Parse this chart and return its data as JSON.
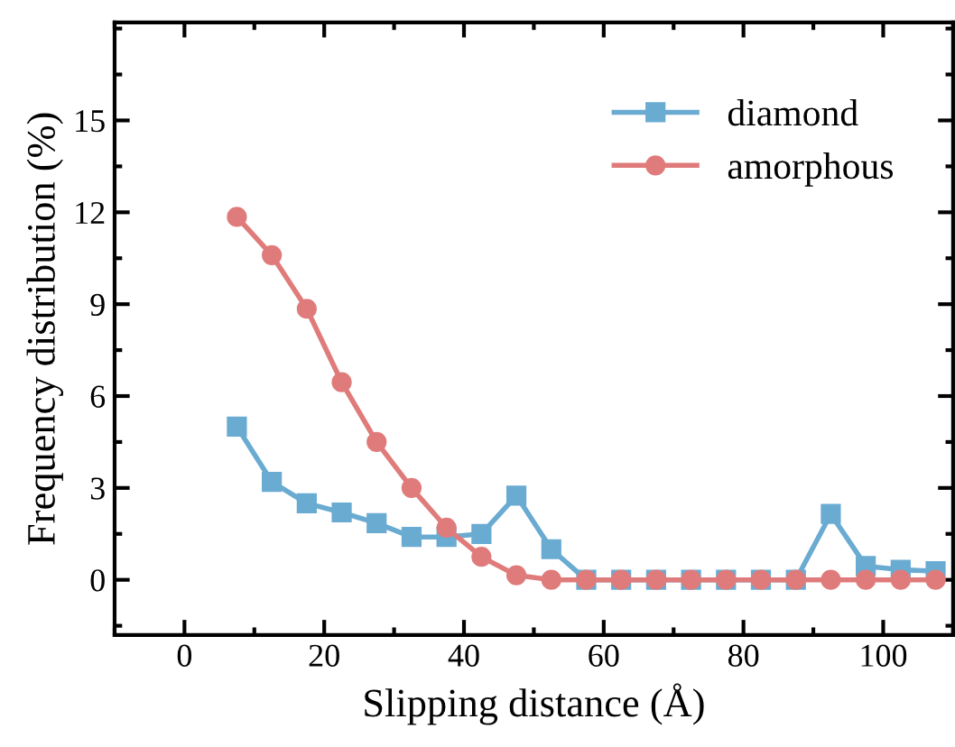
{
  "chart_data": {
    "type": "line",
    "xlabel": "Slipping distance (Å)",
    "ylabel": "Frequency distribution (%)",
    "x": [
      7.5,
      12.5,
      17.5,
      22.5,
      27.5,
      32.5,
      37.5,
      42.5,
      47.5,
      52.5,
      57.5,
      62.5,
      67.5,
      72.5,
      77.5,
      82.5,
      87.5,
      92.5,
      97.5,
      102.5,
      107.5
    ],
    "series": [
      {
        "name": "diamond",
        "color": "#6aabd2",
        "marker": "square",
        "values": [
          5.0,
          3.2,
          2.5,
          2.2,
          1.85,
          1.4,
          1.4,
          1.5,
          2.75,
          1.0,
          0,
          0,
          0,
          0,
          0,
          0,
          0,
          2.15,
          0.45,
          0.33,
          0.28
        ]
      },
      {
        "name": "amorphous",
        "color": "#e07b7b",
        "marker": "circle",
        "values": [
          11.85,
          10.6,
          8.85,
          6.45,
          4.5,
          3.0,
          1.7,
          0.75,
          0.15,
          0,
          0,
          0,
          0,
          0,
          0,
          0,
          0,
          0,
          0,
          0,
          0
        ]
      }
    ],
    "xlim": [
      -10,
      110
    ],
    "ylim": [
      -1.8,
      18.2
    ],
    "xticks": [
      0,
      20,
      40,
      60,
      80,
      100
    ],
    "yticks": [
      0,
      3,
      6,
      9,
      12,
      15
    ],
    "grid": false,
    "legend": "top right",
    "line_style": "solid"
  }
}
